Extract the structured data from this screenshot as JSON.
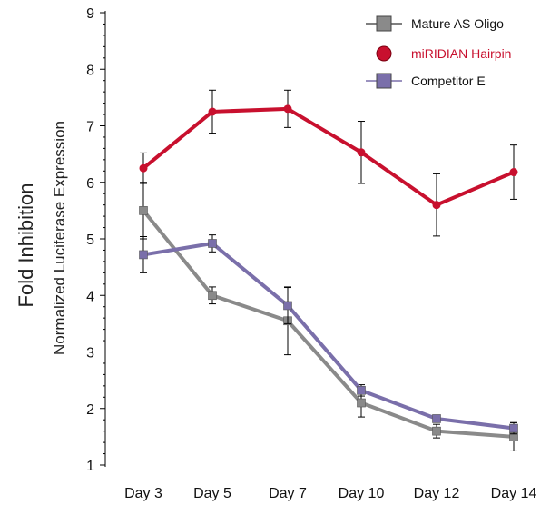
{
  "chart_data": {
    "type": "line",
    "title": "",
    "ylabel": "Fold Inhibition",
    "ylabel_secondary": "Normalized Luciferase Expression",
    "xlabel": "",
    "categories": [
      "Day 3",
      "Day 5",
      "Day 7",
      "Day 10",
      "Day 12",
      "Day 14"
    ],
    "ylim": [
      1,
      9
    ],
    "yticks": [
      1,
      2,
      3,
      4,
      5,
      6,
      7,
      8,
      9
    ],
    "legend_position": "top-right",
    "grid": false,
    "series": [
      {
        "name": "Mature AS Oligo",
        "color": "#8a8a8a",
        "marker": "square",
        "values": [
          5.5,
          4.0,
          3.55,
          2.1,
          1.6,
          1.5
        ],
        "errors": [
          0.5,
          0.15,
          0.6,
          0.25,
          0.12,
          0.25
        ]
      },
      {
        "name": "miRIDIAN Hairpin",
        "color": "#c8102e",
        "marker": "circle",
        "values": [
          6.25,
          7.25,
          7.3,
          6.53,
          5.6,
          6.18
        ],
        "errors": [
          0.27,
          0.38,
          0.33,
          0.55,
          0.55,
          0.48
        ]
      },
      {
        "name": "Competitor E",
        "color": "#7a6faa",
        "marker": "square",
        "values": [
          4.72,
          4.92,
          3.82,
          2.32,
          1.82,
          1.65
        ],
        "errors": [
          0.32,
          0.15,
          0.32,
          0.1,
          0.05,
          0.1
        ]
      }
    ]
  }
}
